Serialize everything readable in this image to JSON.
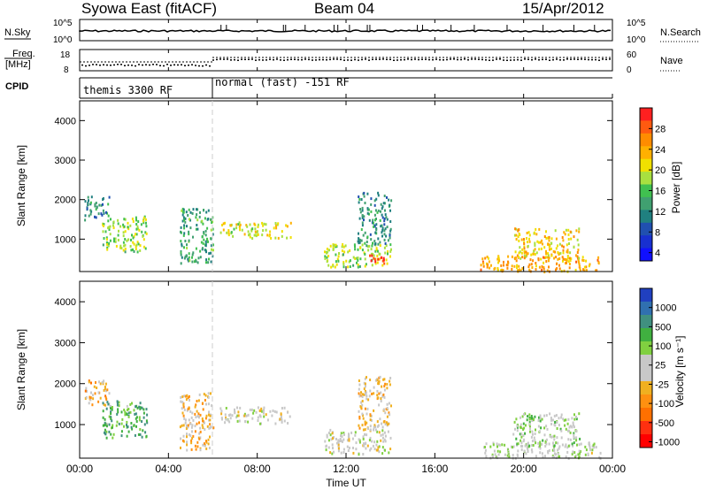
{
  "header": {
    "station": "Syowa East (fitACF)",
    "beam": "Beam 04",
    "date": "15/Apr/2012"
  },
  "top_panels": {
    "nsky_label": "N.Sky",
    "nsearch_label": "N.Search",
    "nsky_ticks": [
      "10^5",
      "10^0"
    ],
    "nsearch_ticks": [
      "10^5",
      "10^0"
    ],
    "freq_label_1": "Freq.",
    "freq_label_2": "[MHz]",
    "freq_ticks": [
      "18",
      "8"
    ],
    "nave_label": "Nave",
    "nave_ticks": [
      "60",
      "0"
    ],
    "cpid_label": "CPID",
    "cpid_segments": [
      {
        "label": "themis 3300 RF",
        "start_hour": 0
      },
      {
        "label": "normal (fast) -151 RF",
        "start_hour": 6
      }
    ]
  },
  "x_axis": {
    "label": "Time UT",
    "ticks": [
      "00:00",
      "04:00",
      "08:00",
      "12:00",
      "16:00",
      "20:00",
      "00:00"
    ],
    "range_hours": [
      0,
      24
    ]
  },
  "panels": [
    {
      "name": "power",
      "ylabel": "Slant Range [km]",
      "yticks": [
        "4000",
        "3000",
        "2000",
        "1000"
      ],
      "cbar_label": "Power [dB]",
      "cbar_ticks": [
        "28",
        "24",
        "20",
        "16",
        "12",
        "8",
        "4"
      ],
      "cbar_colors": [
        "#ff2020",
        "#ff5a10",
        "#ff8c00",
        "#ffb000",
        "#f0e000",
        "#a8e040",
        "#40c050",
        "#40a070",
        "#208080",
        "#2050b0",
        "#1830d0",
        "#1010ff"
      ]
    },
    {
      "name": "velocity",
      "ylabel": "Slant Range [km]",
      "yticks": [
        "4000",
        "3000",
        "2000",
        "1000"
      ],
      "cbar_label": "Velocity [m s⁻¹]",
      "cbar_ticks": [
        "1000",
        "500",
        "100",
        "25",
        "-25",
        "-100",
        "-500",
        "-1000"
      ],
      "cbar_colors": [
        "#2040c0",
        "#3070b0",
        "#409080",
        "#40b040",
        "#80d040",
        "#c8c8c8",
        "#c8c8c8",
        "#f0b020",
        "#ff9010",
        "#ff7000",
        "#ff3010",
        "#ff0000"
      ]
    }
  ],
  "chart_data": [
    {
      "type": "heatmap",
      "title": "Syowa East (fitACF) Beam 04 15/Apr/2012",
      "xlabel": "Time UT",
      "ylabel": "Slant Range [km]",
      "xlim_hours": [
        0,
        24
      ],
      "ylim_km": [
        180,
        4500
      ],
      "colorbar": "Power [dB]",
      "colorbar_range": [
        0,
        30
      ],
      "echo_regions": [
        {
          "t_start": 0.2,
          "t_end": 1.3,
          "range_start": 1500,
          "range_end": 2100,
          "value": 10
        },
        {
          "t_start": 1.0,
          "t_end": 3.0,
          "range_start": 700,
          "range_end": 1600,
          "value": 16
        },
        {
          "t_start": 4.5,
          "t_end": 6.0,
          "range_start": 400,
          "range_end": 1800,
          "value": 12
        },
        {
          "t_start": 6.3,
          "t_end": 9.5,
          "range_start": 1050,
          "range_end": 1450,
          "value": 18
        },
        {
          "t_start": 11.0,
          "t_end": 14.0,
          "range_start": 300,
          "range_end": 900,
          "value": 16
        },
        {
          "t_start": 12.5,
          "t_end": 14.0,
          "range_start": 900,
          "range_end": 2200,
          "value": 10
        },
        {
          "t_start": 13.0,
          "t_end": 13.7,
          "range_start": 400,
          "range_end": 700,
          "value": 28
        },
        {
          "t_start": 18.0,
          "t_end": 23.5,
          "range_start": 200,
          "range_end": 600,
          "value": 22
        },
        {
          "t_start": 19.5,
          "t_end": 22.5,
          "range_start": 500,
          "range_end": 1300,
          "value": 20
        }
      ]
    },
    {
      "type": "heatmap",
      "xlabel": "Time UT",
      "ylabel": "Slant Range [km]",
      "xlim_hours": [
        0,
        24
      ],
      "ylim_km": [
        180,
        4500
      ],
      "colorbar": "Velocity [m s⁻¹]",
      "colorbar_range": [
        -1000,
        1000
      ],
      "echo_regions": [
        {
          "t_start": 0.2,
          "t_end": 1.3,
          "range_start": 1500,
          "range_end": 2100,
          "value": -300
        },
        {
          "t_start": 1.0,
          "t_end": 3.0,
          "range_start": 700,
          "range_end": 1600,
          "value": 400
        },
        {
          "t_start": 4.5,
          "t_end": 6.0,
          "range_start": 400,
          "range_end": 1800,
          "value": -200
        },
        {
          "t_start": 6.3,
          "t_end": 9.5,
          "range_start": 1050,
          "range_end": 1450,
          "value": 0
        },
        {
          "t_start": 11.0,
          "t_end": 14.0,
          "range_start": 300,
          "range_end": 900,
          "value": 0
        },
        {
          "t_start": 12.5,
          "t_end": 14.0,
          "range_start": 900,
          "range_end": 2200,
          "value": -150
        },
        {
          "t_start": 18.0,
          "t_end": 23.5,
          "range_start": 200,
          "range_end": 600,
          "value": 80
        },
        {
          "t_start": 19.5,
          "t_end": 22.5,
          "range_start": 500,
          "range_end": 1300,
          "value": 150
        }
      ]
    }
  ]
}
